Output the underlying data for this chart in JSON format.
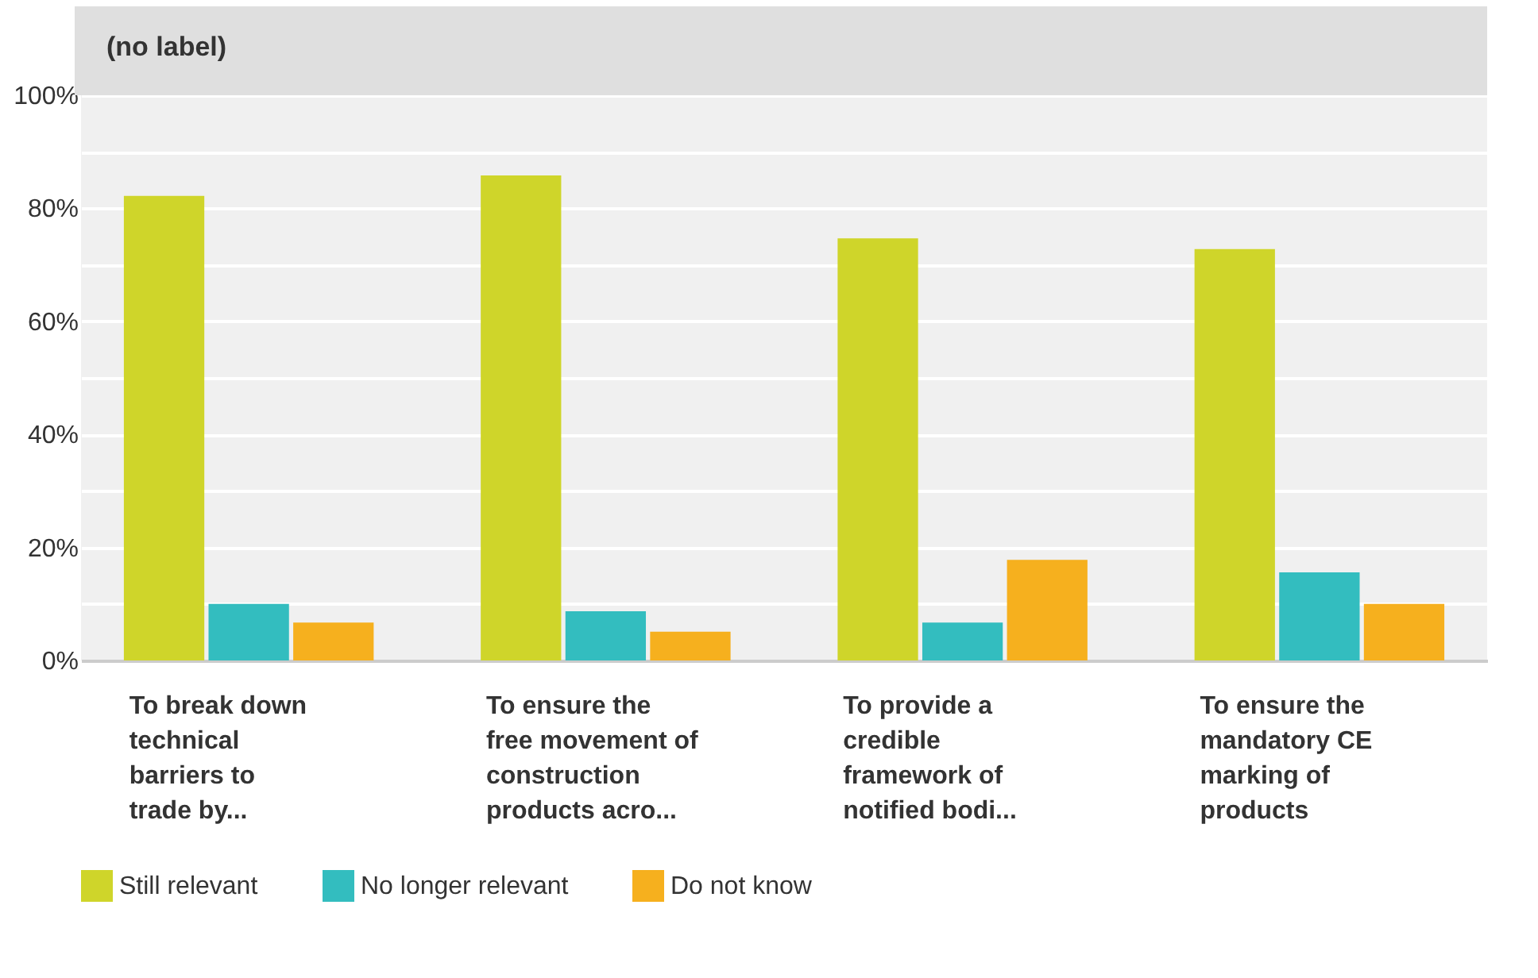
{
  "chart_data": {
    "type": "bar",
    "title": "(no label)",
    "categories": [
      "To break down technical barriers to trade by...",
      "To ensure the free movement of construction products acro...",
      "To provide a credible framework of notified bodi...",
      "To ensure the mandatory CE marking of products"
    ],
    "series": [
      {
        "name": "Still relevant",
        "color": "#cfd52a",
        "values": [
          82.2,
          85.8,
          74.7,
          72.8
        ]
      },
      {
        "name": "No longer relevant",
        "color": "#33bdbf",
        "values": [
          10.0,
          8.7,
          6.7,
          15.6
        ]
      },
      {
        "name": "Do not know",
        "color": "#f6b01e",
        "values": [
          6.7,
          5.1,
          17.8,
          10.0
        ]
      }
    ],
    "ylim": [
      0,
      100
    ],
    "yticks": [
      {
        "value": 0,
        "label": "0%"
      },
      {
        "value": 10,
        "label": null
      },
      {
        "value": 20,
        "label": "20%"
      },
      {
        "value": 30,
        "label": null
      },
      {
        "value": 40,
        "label": "40%"
      },
      {
        "value": 50,
        "label": null
      },
      {
        "value": 60,
        "label": "60%"
      },
      {
        "value": 70,
        "label": null
      },
      {
        "value": 80,
        "label": "80%"
      },
      {
        "value": 90,
        "label": null
      },
      {
        "value": 100,
        "label": "100%"
      }
    ],
    "grid": "y",
    "legend": "bottom"
  }
}
